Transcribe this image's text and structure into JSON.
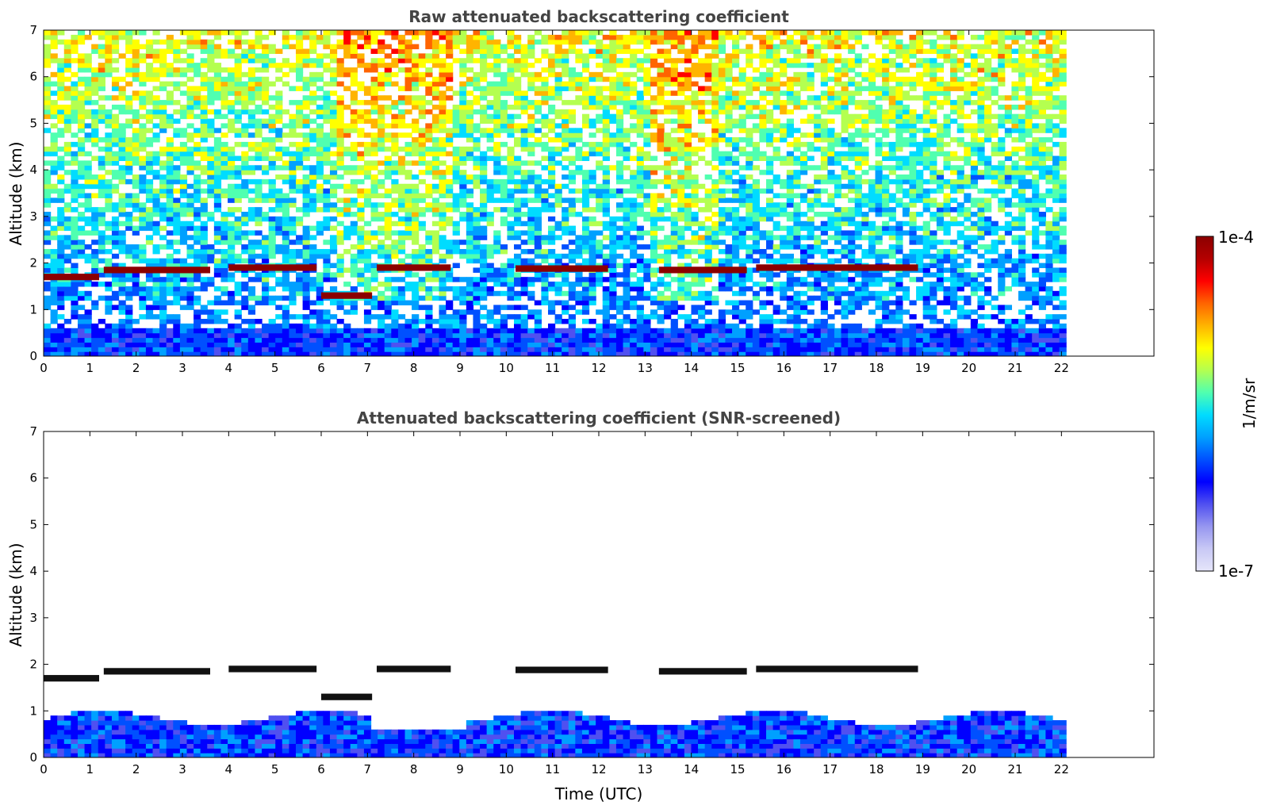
{
  "chart_data": [
    {
      "type": "heatmap",
      "title": "Raw attenuated backscattering coefficient",
      "xlabel": "",
      "ylabel": "Altitude (km)",
      "xlim": [
        0,
        24
      ],
      "ylim": [
        0,
        7
      ],
      "x_ticks": [
        "0",
        "1",
        "2",
        "3",
        "4",
        "5",
        "6",
        "7",
        "8",
        "9",
        "10",
        "11",
        "12",
        "13",
        "14",
        "15",
        "16",
        "17",
        "18",
        "19",
        "20",
        "21",
        "22"
      ],
      "y_ticks": [
        "0",
        "1",
        "2",
        "3",
        "4",
        "5",
        "6",
        "7"
      ],
      "data_extent_hours": [
        0,
        22.1
      ],
      "grid": false,
      "cloud_layers": [
        {
          "start": 0.0,
          "end": 1.2,
          "altitude_km": 1.7
        },
        {
          "start": 1.3,
          "end": 3.6,
          "altitude_km": 1.85
        },
        {
          "start": 4.0,
          "end": 5.9,
          "altitude_km": 1.9
        },
        {
          "start": 6.0,
          "end": 7.1,
          "altitude_km": 1.3
        },
        {
          "start": 7.2,
          "end": 8.8,
          "altitude_km": 1.9
        },
        {
          "start": 10.2,
          "end": 12.2,
          "altitude_km": 1.88
        },
        {
          "start": 13.3,
          "end": 15.2,
          "altitude_km": 1.85
        },
        {
          "start": 15.4,
          "end": 18.9,
          "altitude_km": 1.9
        }
      ]
    },
    {
      "type": "heatmap",
      "title": "Attenuated backscattering coefficient (SNR-screened)",
      "xlabel": "Time (UTC)",
      "ylabel": "Altitude (km)",
      "xlim": [
        0,
        24
      ],
      "ylim": [
        0,
        7
      ],
      "x_ticks": [
        "0",
        "1",
        "2",
        "3",
        "4",
        "5",
        "6",
        "7",
        "8",
        "9",
        "10",
        "11",
        "12",
        "13",
        "14",
        "15",
        "16",
        "17",
        "18",
        "19",
        "20",
        "21",
        "22"
      ],
      "y_ticks": [
        "0",
        "1",
        "2",
        "3",
        "4",
        "5",
        "6",
        "7"
      ],
      "data_extent_hours": [
        0,
        22.1
      ],
      "grid": false
    }
  ],
  "colorbar": {
    "label": "1/m/sr",
    "min_label": "1e-7",
    "max_label": "1e-4",
    "min": 1e-07,
    "max": 0.0001,
    "scale": "log",
    "colors": [
      "#e6e6fa",
      "#c8c8f5",
      "#9696f0",
      "#5050f0",
      "#0000ff",
      "#0050ff",
      "#00a0ff",
      "#00dcff",
      "#50ffb0",
      "#b4ff50",
      "#ffff00",
      "#ffb400",
      "#ff6400",
      "#ff0000",
      "#b40000",
      "#8b0000"
    ]
  }
}
